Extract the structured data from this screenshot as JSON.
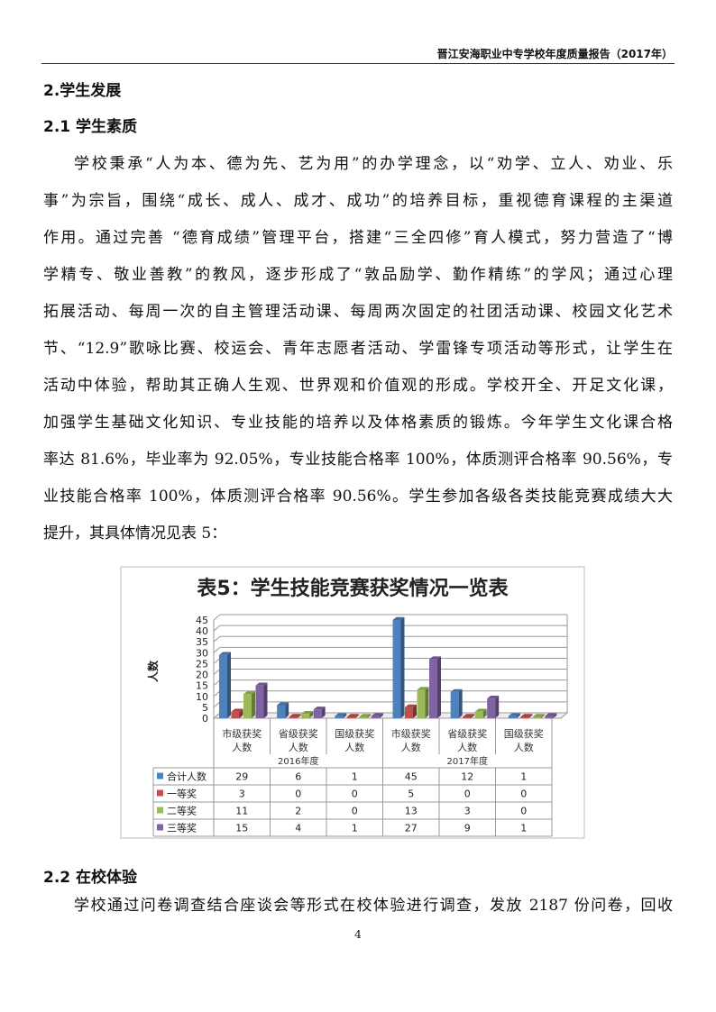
{
  "header": {
    "title": "晋江安海职业中专学校年度质量报告（2017年）"
  },
  "section": {
    "title": "2.学生发展"
  },
  "subsection1": {
    "title": "2.1 学生素质"
  },
  "paragraph1": {
    "lines": [
      "学校秉承“人为本、德为先、艺为用”的办学理念，以“劝学、立人、劝业、乐",
      "事”为宗旨，围绕“成长、成人、成才、成功”的培养目标，重视德育课程的主渠道",
      "作用。通过完善 “德育成绩”管理平台，搭建“三全四修”育人模式，努力营造了“博",
      "学精专、敬业善教”的教风，逐步形成了“敦品励学、勤作精练”的学风；通过心理",
      "拓展活动、每周一次的自主管理活动课、每周两次固定的社团活动课、校园文化艺术",
      "节、“12.9”歌咏比赛、校运会、青年志愿者活动、学雷锋专项活动等形式，让学生在",
      "活动中体验，帮助其正确人生观、世界观和价值观的形成。学校开全、开足文化课，",
      "加强学生基础文化知识、专业技能的培养以及体格素质的锻炼。今年学生文化课合格",
      "率达 81.6%，毕业率为 92.05%，专业技能合格率 100%，体质测评合格率 90.56%，专",
      "业技能合格率 100%，体质测评合格率 90.56%。学生参加各级各类技能竞赛成绩大大",
      "提升，其具体情况见表 5："
    ]
  },
  "chart_data": {
    "type": "bar",
    "title": "表5：学生技能竞赛获奖情况一览表",
    "ylabel": "人数",
    "ylim": [
      0,
      45
    ],
    "yticks": [
      "0",
      "5",
      "10",
      "15",
      "20",
      "25",
      "30",
      "35",
      "40",
      "45"
    ],
    "grid": true,
    "legend": "data-table",
    "categories": [
      "市级获奖人数",
      "省级获奖人数",
      "国级获奖人数",
      "市级获奖人数",
      "省级获奖人数",
      "国级获奖人数"
    ],
    "category_lines": [
      [
        "市级获奖",
        "人数"
      ],
      [
        "省级获奖",
        "人数"
      ],
      [
        "国级获奖",
        "人数"
      ],
      [
        "市级获奖",
        "人数"
      ],
      [
        "省级获奖",
        "人数"
      ],
      [
        "国级获奖",
        "人数"
      ]
    ],
    "groups": [
      "2016年度",
      "2017年度"
    ],
    "series": [
      {
        "name": "合计人数",
        "color": "#4f81bd",
        "values": [
          29,
          6,
          1,
          45,
          12,
          1
        ]
      },
      {
        "name": "一等奖",
        "color": "#c0504d",
        "values": [
          3,
          0,
          0,
          5,
          0,
          0
        ]
      },
      {
        "name": "二等奖",
        "color": "#9bbb59",
        "values": [
          11,
          2,
          0,
          13,
          3,
          0
        ]
      },
      {
        "name": "三等奖",
        "color": "#8064a2",
        "values": [
          15,
          4,
          1,
          27,
          9,
          1
        ]
      }
    ]
  },
  "subsection2": {
    "title": "2.2 在校体验"
  },
  "paragraph2": {
    "lines": [
      "学校通过问卷调查结合座谈会等形式在校体验进行调查，发放 2187 份问卷，回收"
    ]
  },
  "footer": {
    "page_number": "4"
  }
}
